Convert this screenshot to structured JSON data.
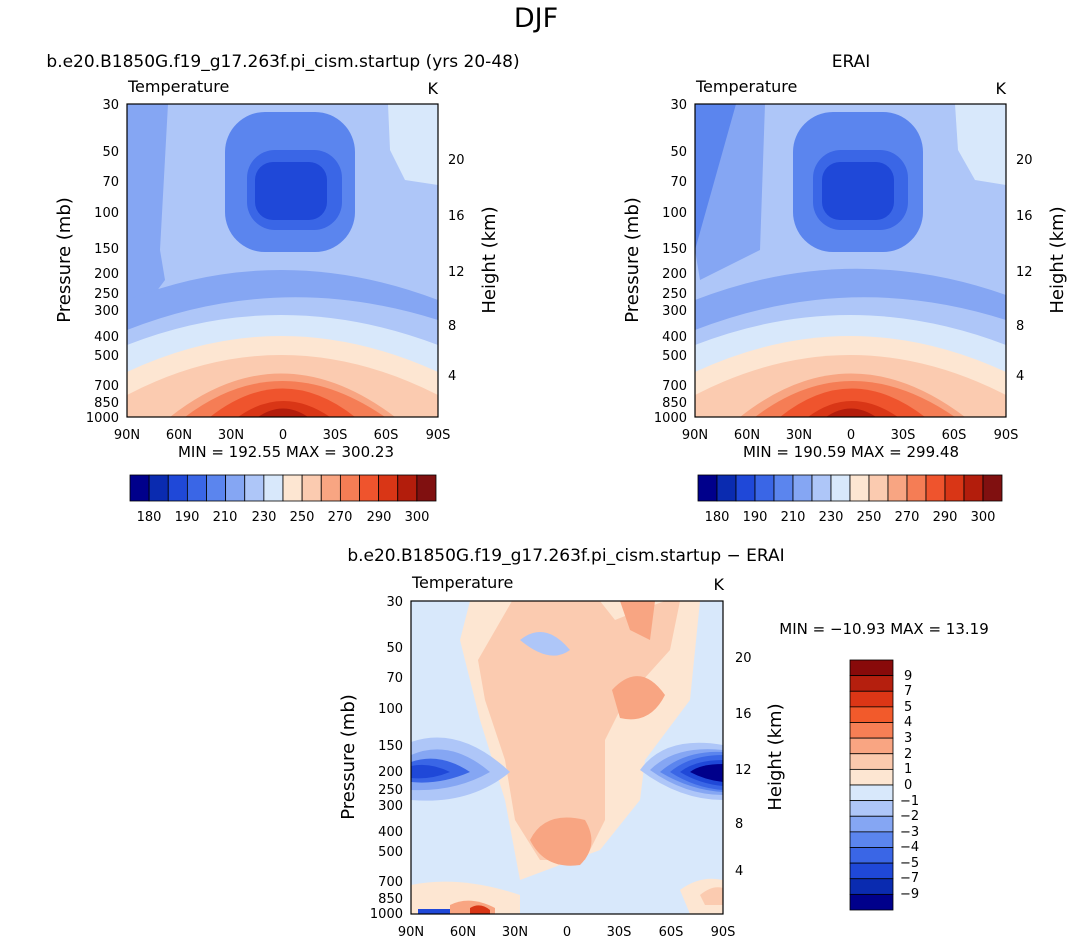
{
  "figure_title": "DJF",
  "chart_data": [
    {
      "type": "heatmap",
      "title": "b.e20.B1850G.f19_g17.263f.pi_cism.startup (yrs 20-48)",
      "variable": "Temperature",
      "units": "K",
      "ylabel": "Pressure (mb)",
      "y2label": "Height (km)",
      "x_ticks": [
        "90N",
        "60N",
        "30N",
        "0",
        "30S",
        "60S",
        "90S"
      ],
      "y_ticks": [
        "30",
        "50",
        "70",
        "100",
        "150",
        "200",
        "250",
        "300",
        "400",
        "500",
        "700",
        "850",
        "1000"
      ],
      "y2_ticks": [
        "20",
        "16",
        "12",
        "8",
        "4"
      ],
      "stats": "MIN = 192.55   MAX = 300.23",
      "min": 192.55,
      "max": 300.23,
      "colorbar_labels": [
        "180",
        "190",
        "210",
        "230",
        "250",
        "270",
        "290",
        "300"
      ]
    },
    {
      "type": "heatmap",
      "title": "ERAI",
      "variable": "Temperature",
      "units": "K",
      "ylabel": "Pressure (mb)",
      "y2label": "Height (km)",
      "x_ticks": [
        "90N",
        "60N",
        "30N",
        "0",
        "30S",
        "60S",
        "90S"
      ],
      "y_ticks": [
        "30",
        "50",
        "70",
        "100",
        "150",
        "200",
        "250",
        "300",
        "400",
        "500",
        "700",
        "850",
        "1000"
      ],
      "y2_ticks": [
        "20",
        "16",
        "12",
        "8",
        "4"
      ],
      "stats": "MIN = 190.59   MAX = 299.48",
      "min": 190.59,
      "max": 299.48,
      "colorbar_labels": [
        "180",
        "190",
        "210",
        "230",
        "250",
        "270",
        "290",
        "300"
      ]
    },
    {
      "type": "heatmap",
      "title": "b.e20.B1850G.f19_g17.263f.pi_cism.startup − ERAI",
      "variable": "Temperature",
      "units": "K",
      "ylabel": "Pressure (mb)",
      "y2label": "Height (km)",
      "x_ticks": [
        "90N",
        "60N",
        "30N",
        "0",
        "30S",
        "60S",
        "90S"
      ],
      "y_ticks": [
        "30",
        "50",
        "70",
        "100",
        "150",
        "200",
        "250",
        "300",
        "400",
        "500",
        "700",
        "850",
        "1000"
      ],
      "y2_ticks": [
        "20",
        "16",
        "12",
        "8",
        "4"
      ],
      "stats": "MIN = −10.93   MAX =  13.19",
      "min": -10.93,
      "max": 13.19,
      "colorbar_labels": [
        "9",
        "7",
        "5",
        "4",
        "3",
        "2",
        "1",
        "0",
        "−1",
        "−2",
        "−3",
        "−4",
        "−5",
        "−7",
        "−9"
      ]
    }
  ],
  "colors": {
    "abs_scale": [
      "#00008b",
      "#0a2bb0",
      "#1f48d8",
      "#3a66e6",
      "#5b85ee",
      "#85a6f3",
      "#aec6f8",
      "#d8e8fb",
      "#fde6d2",
      "#fbcbb0",
      "#f8a582",
      "#f57d55",
      "#ef542d",
      "#d93616",
      "#b31d0c",
      "#801010"
    ],
    "diff_scale": [
      "#880a0a",
      "#b51f0e",
      "#dc3616",
      "#f25a2b",
      "#f77f55",
      "#f9a582",
      "#fbc9ad",
      "#fde6d2",
      "#d8e8fb",
      "#aec6f8",
      "#85a6f3",
      "#5b85ee",
      "#3a66e6",
      "#1f48d8",
      "#0a2bb0",
      "#00008b"
    ]
  }
}
